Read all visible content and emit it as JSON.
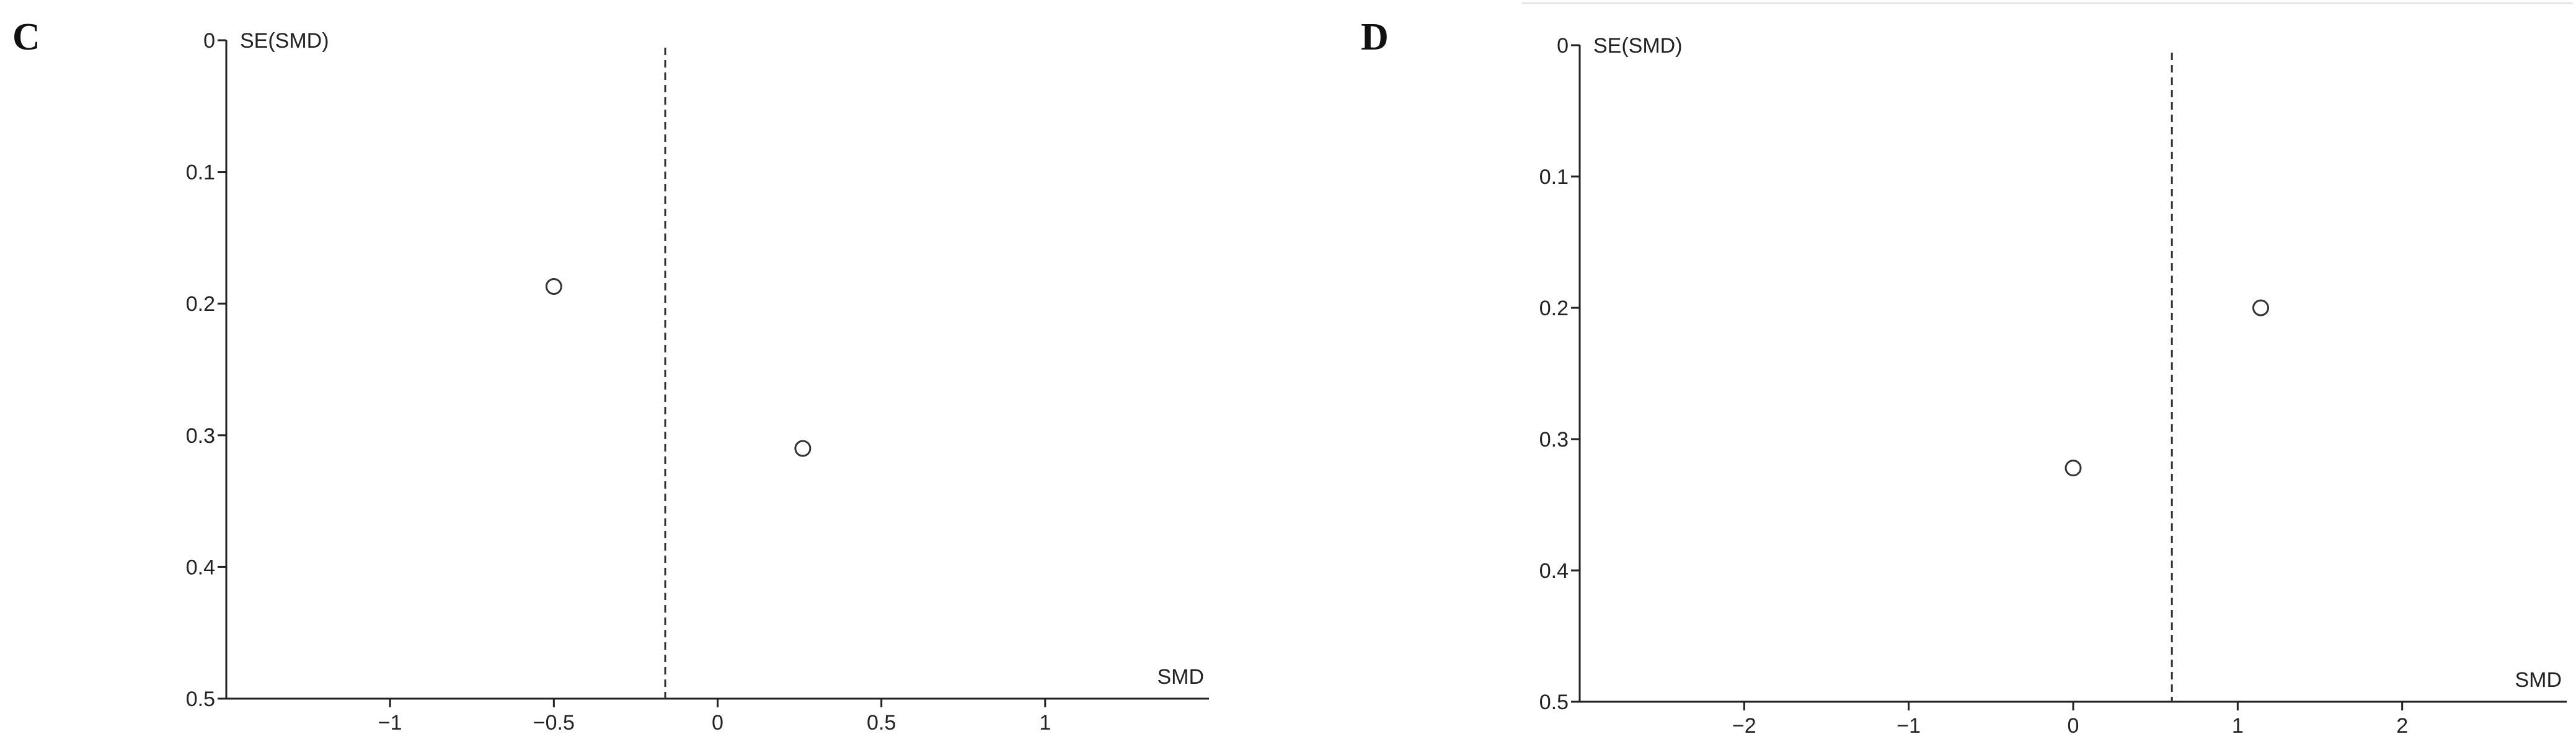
{
  "chart_data": [
    {
      "type": "scatter",
      "panel_label": "C",
      "xlabel": "SMD",
      "ylabel": "SE(SMD)",
      "xlim": [
        -1.5,
        1.5
      ],
      "ylim": [
        0,
        0.5
      ],
      "y_inverted": true,
      "x_ticks": [
        -1,
        -0.5,
        0,
        0.5,
        1
      ],
      "x_tick_labels": [
        "−1",
        "−0.5",
        "0",
        "0.5",
        "1"
      ],
      "y_ticks": [
        0,
        0.1,
        0.2,
        0.3,
        0.4,
        0.5
      ],
      "y_tick_labels": [
        "0",
        "0.1",
        "0.2",
        "0.3",
        "0.4",
        "0.5"
      ],
      "reference_line_x": -0.16,
      "grid": false,
      "points": [
        {
          "x": -0.5,
          "y": 0.187
        },
        {
          "x": 0.26,
          "y": 0.31
        }
      ]
    },
    {
      "type": "scatter",
      "panel_label": "D",
      "xlabel": "SMD",
      "ylabel": "SE(SMD)",
      "xlim": [
        -3,
        3
      ],
      "ylim": [
        0,
        0.5
      ],
      "y_inverted": true,
      "x_ticks": [
        -2,
        -1,
        0,
        1,
        2
      ],
      "x_tick_labels": [
        "−2",
        "−1",
        "0",
        "1",
        "2"
      ],
      "y_ticks": [
        0,
        0.1,
        0.2,
        0.3,
        0.4,
        0.5
      ],
      "y_tick_labels": [
        "0",
        "0.1",
        "0.2",
        "0.3",
        "0.4",
        "0.5"
      ],
      "reference_line_x": 0.6,
      "grid": false,
      "points": [
        {
          "x": 0.0,
          "y": 0.322
        },
        {
          "x": 1.14,
          "y": 0.2
        }
      ]
    }
  ]
}
